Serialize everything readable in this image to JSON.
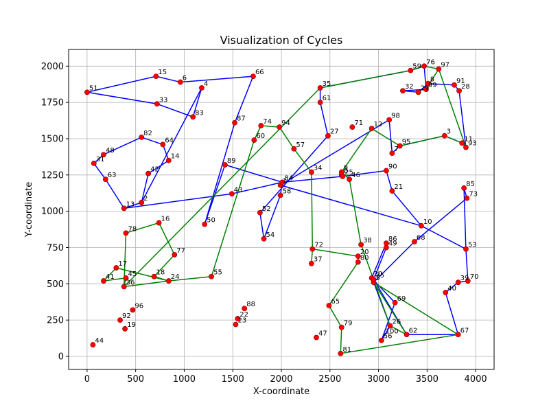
{
  "chart_data": {
    "type": "scatter",
    "title": "Visualization of Cycles",
    "xlabel": "X-coordinate",
    "ylabel": "Y-coordinate",
    "xlim": [
      -190,
      4190
    ],
    "ylim": [
      -90,
      2115
    ],
    "xticks": [
      0,
      500,
      1000,
      1500,
      2000,
      2500,
      3000,
      3500,
      4000
    ],
    "yticks": [
      0,
      250,
      500,
      750,
      1000,
      1250,
      1500,
      1750,
      2000
    ],
    "grid": true,
    "colors": {
      "point_fill": "#ff0000",
      "cycle_1": "#0000ff",
      "cycle_2": "#008000"
    },
    "points": [
      {
        "id": "0",
        "x": 2620,
        "y": 1250
      },
      {
        "id": "1",
        "x": 1990,
        "y": 1180
      },
      {
        "id": "2",
        "x": 560,
        "y": 1060
      },
      {
        "id": "3",
        "x": 3680,
        "y": 1520
      },
      {
        "id": "4",
        "x": 1180,
        "y": 1850
      },
      {
        "id": "5",
        "x": 2950,
        "y": 510
      },
      {
        "id": "6",
        "x": 960,
        "y": 1890
      },
      {
        "id": "7",
        "x": 3140,
        "y": 1400
      },
      {
        "id": "8",
        "x": 3510,
        "y": 1880
      },
      {
        "id": "9",
        "x": 2620,
        "y": 1270
      },
      {
        "id": "10",
        "x": 3440,
        "y": 900
      },
      {
        "id": "11",
        "x": 3860,
        "y": 1470
      },
      {
        "id": "12",
        "x": 2930,
        "y": 1570
      },
      {
        "id": "13",
        "x": 380,
        "y": 1020
      },
      {
        "id": "14",
        "x": 840,
        "y": 1350
      },
      {
        "id": "15",
        "x": 710,
        "y": 1930
      },
      {
        "id": "16",
        "x": 740,
        "y": 920
      },
      {
        "id": "17",
        "x": 300,
        "y": 610
      },
      {
        "id": "18",
        "x": 690,
        "y": 550
      },
      {
        "id": "19",
        "x": 390,
        "y": 190
      },
      {
        "id": "20",
        "x": 2790,
        "y": 690
      },
      {
        "id": "21",
        "x": 3140,
        "y": 1140
      },
      {
        "id": "22",
        "x": 1550,
        "y": 260
      },
      {
        "id": "23",
        "x": 1530,
        "y": 220
      },
      {
        "id": "24",
        "x": 840,
        "y": 520
      },
      {
        "id": "25",
        "x": 2630,
        "y": 1240
      },
      {
        "id": "26",
        "x": 3120,
        "y": 210
      },
      {
        "id": "27",
        "x": 2480,
        "y": 1520
      },
      {
        "id": "28",
        "x": 3830,
        "y": 1830
      },
      {
        "id": "29",
        "x": 3410,
        "y": 1820
      },
      {
        "id": "30",
        "x": 2930,
        "y": 540
      },
      {
        "id": "31",
        "x": 70,
        "y": 1330
      },
      {
        "id": "32",
        "x": 3250,
        "y": 1830
      },
      {
        "id": "33",
        "x": 720,
        "y": 1740
      },
      {
        "id": "34",
        "x": 2310,
        "y": 1270
      },
      {
        "id": "35",
        "x": 2400,
        "y": 1850
      },
      {
        "id": "36",
        "x": 380,
        "y": 480
      },
      {
        "id": "37",
        "x": 2310,
        "y": 640
      },
      {
        "id": "38",
        "x": 2820,
        "y": 770
      },
      {
        "id": "39",
        "x": 3820,
        "y": 510
      },
      {
        "id": "40",
        "x": 3690,
        "y": 440
      },
      {
        "id": "41",
        "x": 170,
        "y": 520
      },
      {
        "id": "42",
        "x": 630,
        "y": 1260
      },
      {
        "id": "43",
        "x": 1490,
        "y": 1120
      },
      {
        "id": "44",
        "x": 60,
        "y": 80
      },
      {
        "id": "45",
        "x": 400,
        "y": 540
      },
      {
        "id": "46",
        "x": 2700,
        "y": 1220
      },
      {
        "id": "47",
        "x": 2360,
        "y": 130
      },
      {
        "id": "48",
        "x": 170,
        "y": 1390
      },
      {
        "id": "49",
        "x": 3080,
        "y": 750
      },
      {
        "id": "50",
        "x": 1210,
        "y": 910
      },
      {
        "id": "51",
        "x": 0,
        "y": 1820
      },
      {
        "id": "52",
        "x": 1780,
        "y": 990
      },
      {
        "id": "53",
        "x": 3900,
        "y": 740
      },
      {
        "id": "54",
        "x": 1820,
        "y": 810
      },
      {
        "id": "55",
        "x": 1280,
        "y": 550
      },
      {
        "id": "56",
        "x": 3030,
        "y": 110
      },
      {
        "id": "57",
        "x": 2130,
        "y": 1430
      },
      {
        "id": "58",
        "x": 1990,
        "y": 1110
      },
      {
        "id": "59",
        "x": 3330,
        "y": 1970
      },
      {
        "id": "60",
        "x": 1720,
        "y": 1490
      },
      {
        "id": "61",
        "x": 2400,
        "y": 1750
      },
      {
        "id": "62",
        "x": 3290,
        "y": 150
      },
      {
        "id": "63",
        "x": 190,
        "y": 1220
      },
      {
        "id": "64",
        "x": 780,
        "y": 1460
      },
      {
        "id": "65",
        "x": 2490,
        "y": 350
      },
      {
        "id": "66",
        "x": 1710,
        "y": 1930
      },
      {
        "id": "67",
        "x": 3820,
        "y": 150
      },
      {
        "id": "68",
        "x": 3370,
        "y": 790
      },
      {
        "id": "69",
        "x": 3170,
        "y": 370
      },
      {
        "id": "70",
        "x": 3920,
        "y": 520
      },
      {
        "id": "71",
        "x": 2730,
        "y": 1580
      },
      {
        "id": "72",
        "x": 2320,
        "y": 740
      },
      {
        "id": "73",
        "x": 3910,
        "y": 1090
      },
      {
        "id": "74",
        "x": 1790,
        "y": 1590
      },
      {
        "id": "75",
        "x": 2950,
        "y": 530
      },
      {
        "id": "76",
        "x": 3470,
        "y": 2000
      },
      {
        "id": "77",
        "x": 900,
        "y": 700
      },
      {
        "id": "78",
        "x": 400,
        "y": 850
      },
      {
        "id": "79",
        "x": 2620,
        "y": 200
      },
      {
        "id": "80",
        "x": 2790,
        "y": 650
      },
      {
        "id": "81",
        "x": 2610,
        "y": 20
      },
      {
        "id": "82",
        "x": 560,
        "y": 1510
      },
      {
        "id": "83",
        "x": 1090,
        "y": 1650
      },
      {
        "id": "84",
        "x": 2010,
        "y": 1200
      },
      {
        "id": "85",
        "x": 3880,
        "y": 1160
      },
      {
        "id": "86",
        "x": 3080,
        "y": 780
      },
      {
        "id": "87",
        "x": 1520,
        "y": 1610
      },
      {
        "id": "88",
        "x": 1620,
        "y": 330
      },
      {
        "id": "89",
        "x": 1420,
        "y": 1320
      },
      {
        "id": "90",
        "x": 3080,
        "y": 1280
      },
      {
        "id": "91",
        "x": 3780,
        "y": 1870
      },
      {
        "id": "92",
        "x": 340,
        "y": 250
      },
      {
        "id": "93",
        "x": 3900,
        "y": 1440
      },
      {
        "id": "94",
        "x": 1980,
        "y": 1580
      },
      {
        "id": "95",
        "x": 3220,
        "y": 1450
      },
      {
        "id": "96",
        "x": 470,
        "y": 320
      },
      {
        "id": "97",
        "x": 3620,
        "y": 1980
      },
      {
        "id": "98",
        "x": 3110,
        "y": 1630
      },
      {
        "id": "99",
        "x": 3490,
        "y": 1840
      }
    ],
    "cycles": [
      {
        "color": "#0000ff",
        "path": [
          "51",
          "15",
          "6",
          "66",
          "87",
          "50",
          "89",
          "84",
          "25",
          "90",
          "21",
          "10",
          "53",
          "85",
          "73",
          "68",
          "5",
          "26",
          "56",
          "69",
          "30",
          "86",
          "49",
          "75",
          "100",
          "62",
          "67",
          "40",
          "39",
          "70",
          "53",
          "10",
          "1",
          "98",
          "7",
          "95",
          "3",
          "11",
          "93",
          "28",
          "91",
          "8",
          "29",
          "32",
          "99",
          "76",
          "59",
          "35",
          "61",
          "27",
          "52",
          "54",
          "58",
          "84",
          "43",
          "13",
          "2",
          "42",
          "14",
          "64",
          "82",
          "48",
          "31",
          "63",
          "13",
          "2",
          "4",
          "83",
          "33",
          "51"
        ]
      },
      {
        "color": "#008000",
        "path": [
          "97",
          "76",
          "59",
          "35",
          "36",
          "45",
          "41",
          "17",
          "24",
          "18",
          "77",
          "16",
          "78",
          "36",
          "24",
          "55",
          "60",
          "74",
          "94",
          "57",
          "34",
          "72",
          "37",
          "72",
          "20",
          "80",
          "65",
          "79",
          "81",
          "67",
          "5",
          "62",
          "26",
          "38",
          "46",
          "9",
          "12",
          "95",
          "3",
          "11",
          "93",
          "97",
          "99",
          "8"
        ]
      }
    ],
    "extra_labels": [
      {
        "id": "100",
        "x": 3050,
        "y": 145
      }
    ]
  }
}
